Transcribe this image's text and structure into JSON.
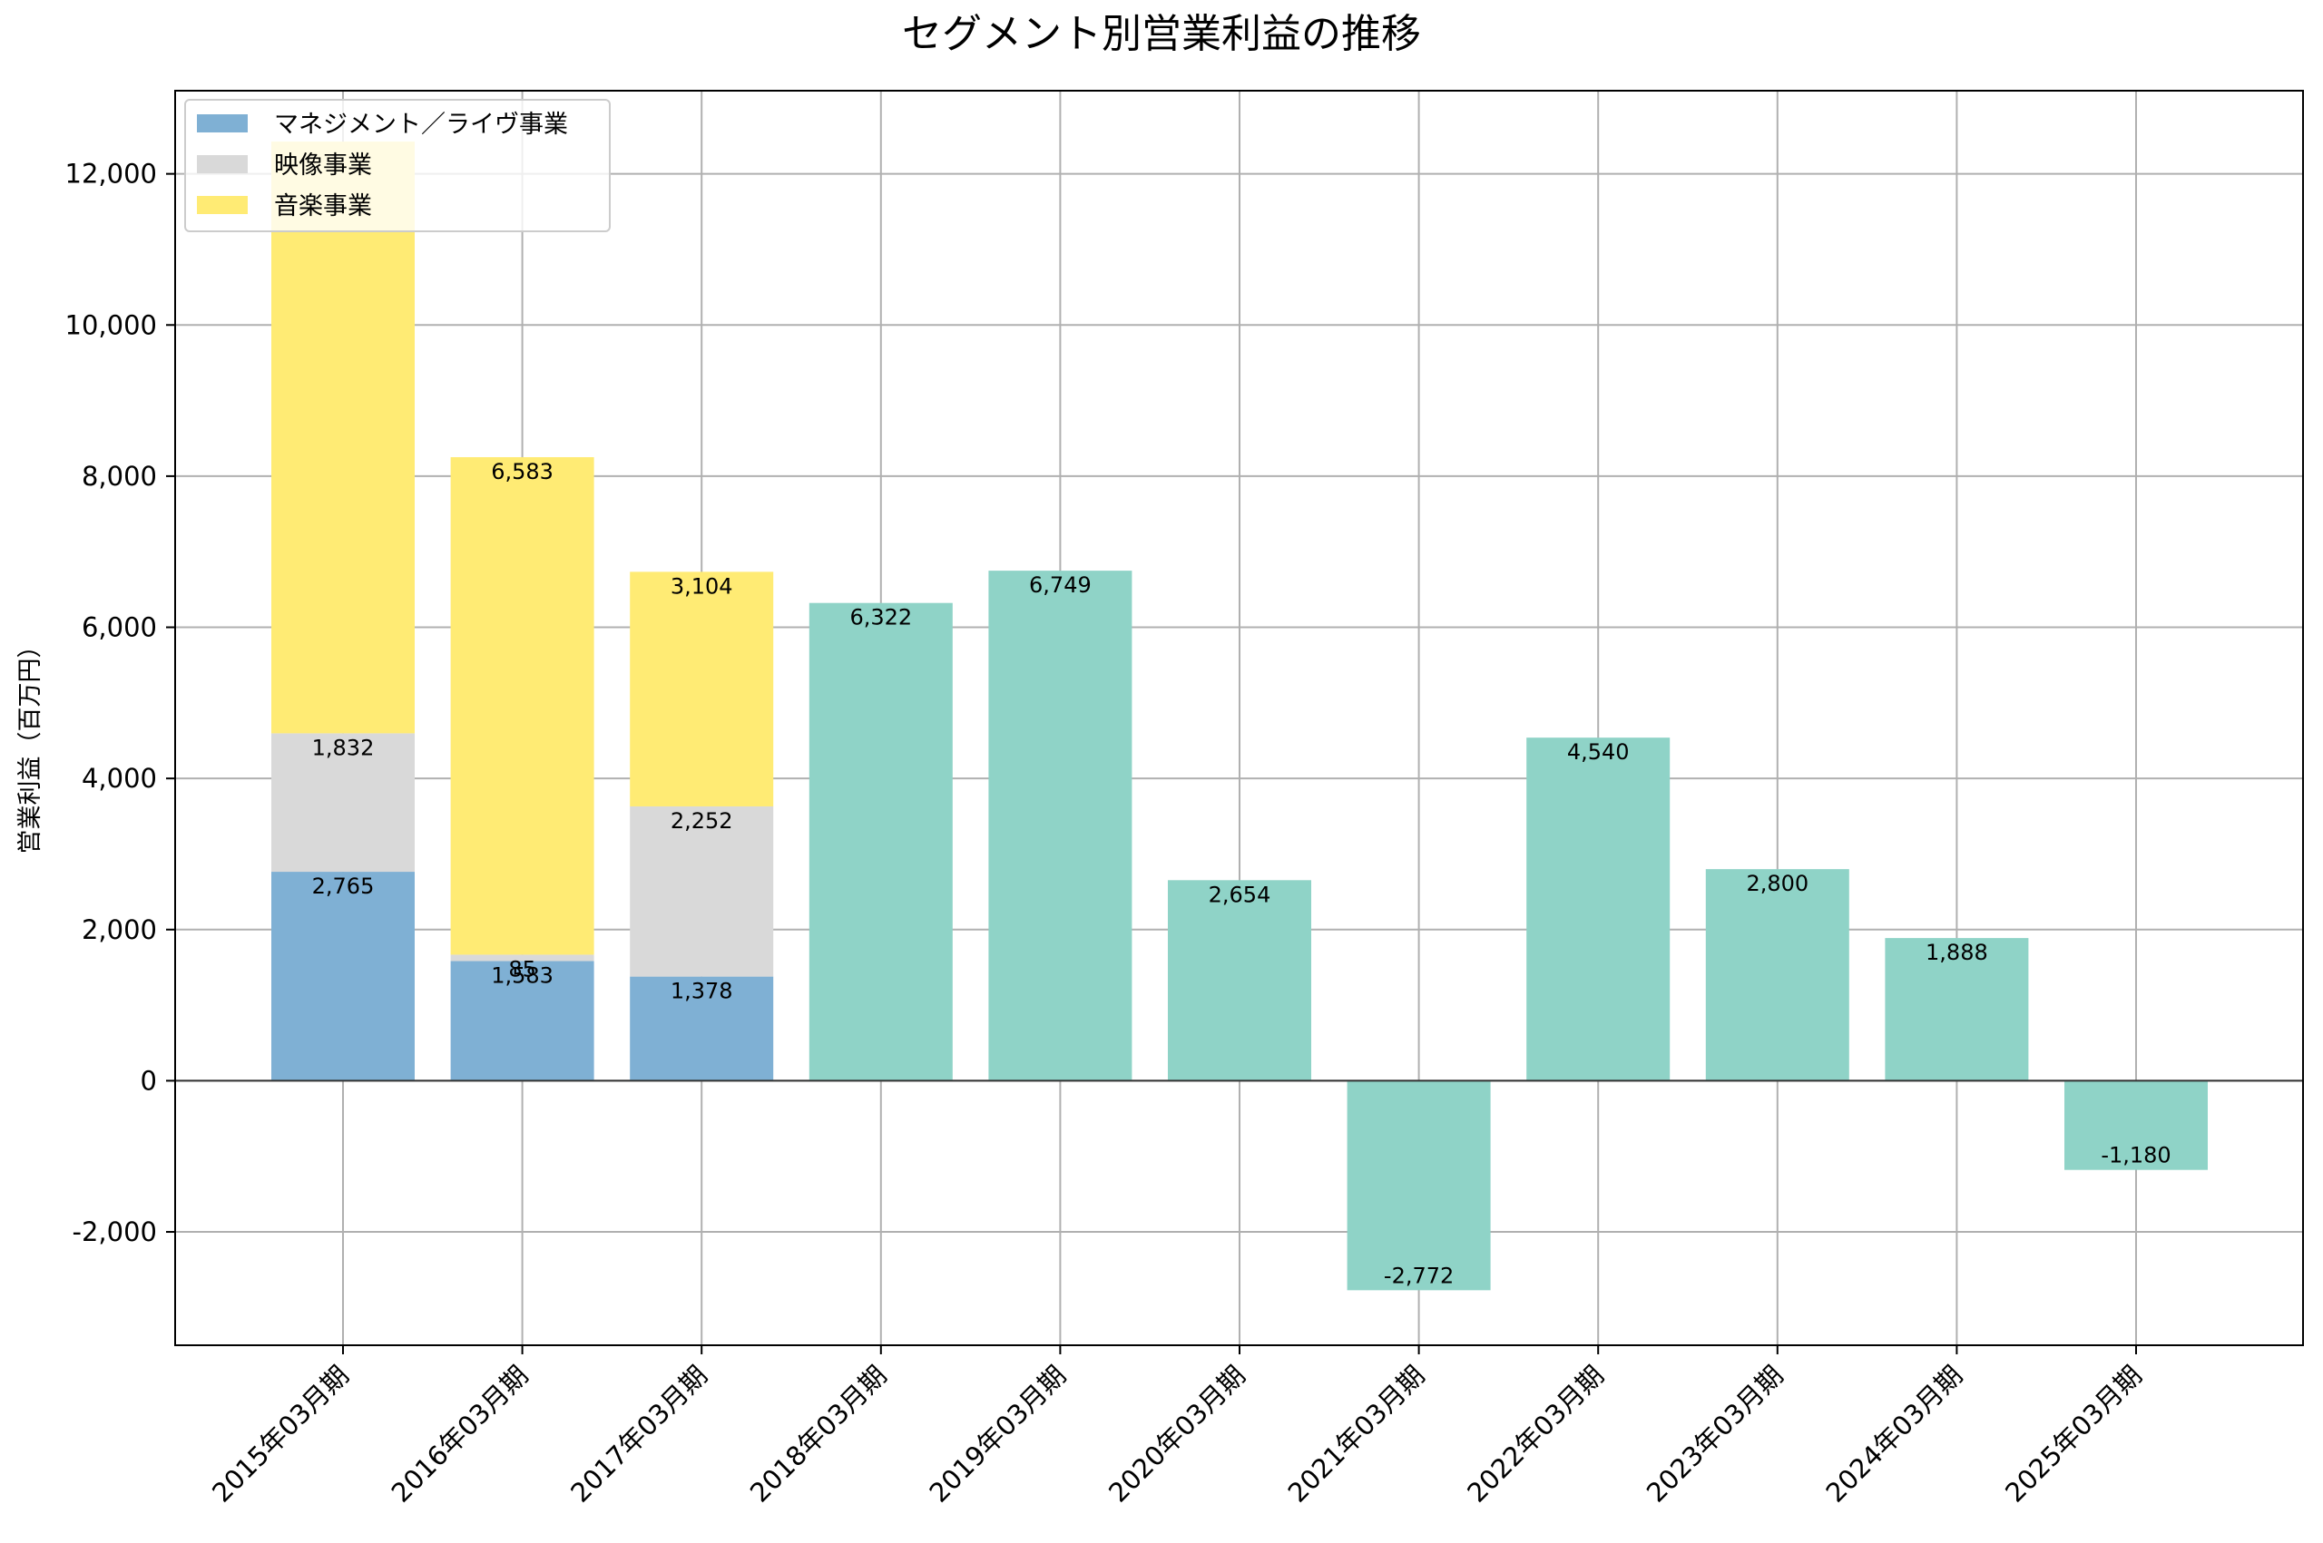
{
  "chart_data": {
    "type": "bar",
    "title": "セグメント別営業利益の推移",
    "xlabel": "",
    "ylabel": "営業利益（百万円）",
    "ylim": [
      -3500,
      13100
    ],
    "yticks": [
      -2000,
      0,
      2000,
      4000,
      6000,
      8000,
      10000,
      12000
    ],
    "ytick_labels": [
      "-2,000",
      "0",
      "2,000",
      "4,000",
      "6,000",
      "8,000",
      "10,000",
      "12,000"
    ],
    "grid": true,
    "legend_position": "top-left",
    "categories": [
      "2015年03月期",
      "2016年03月期",
      "2017年03月期",
      "2018年03月期",
      "2019年03月期",
      "2020年03月期",
      "2021年03月期",
      "2022年03月期",
      "2023年03月期",
      "2024年03月期",
      "2025年03月期"
    ],
    "stacked_series": [
      {
        "name": "マネジメント／ライヴ事業",
        "color": "#7fb0d4",
        "values": [
          2765,
          1583,
          1378,
          null,
          null,
          null,
          null,
          null,
          null,
          null,
          null
        ],
        "labels": [
          "2,765",
          "1,583",
          "1,378",
          null,
          null,
          null,
          null,
          null,
          null,
          null,
          null
        ]
      },
      {
        "name": "映像事業",
        "color": "#d9d9d9",
        "values": [
          1832,
          85,
          2252,
          null,
          null,
          null,
          null,
          null,
          null,
          null,
          null
        ],
        "labels": [
          "1,832",
          "85",
          "2,252",
          null,
          null,
          null,
          null,
          null,
          null,
          null,
          null
        ]
      },
      {
        "name": "音楽事業",
        "color": "#ffeb74",
        "values": [
          7830,
          6583,
          3104,
          null,
          null,
          null,
          null,
          null,
          null,
          null,
          null
        ],
        "labels": [
          null,
          "6,583",
          "3,104",
          null,
          null,
          null,
          null,
          null,
          null,
          null,
          null
        ]
      }
    ],
    "total_series": {
      "color": "#8fd3c7",
      "values": [
        null,
        null,
        null,
        6322,
        6749,
        2654,
        -2772,
        4540,
        2800,
        1888,
        -1180
      ],
      "labels": [
        null,
        null,
        null,
        "6,322",
        "6,749",
        "2,654",
        "-2,772",
        "4,540",
        "2,800",
        "1,888",
        "-1,180"
      ]
    },
    "legend": [
      "マネジメント／ライヴ事業",
      "映像事業",
      "音楽事業"
    ]
  }
}
